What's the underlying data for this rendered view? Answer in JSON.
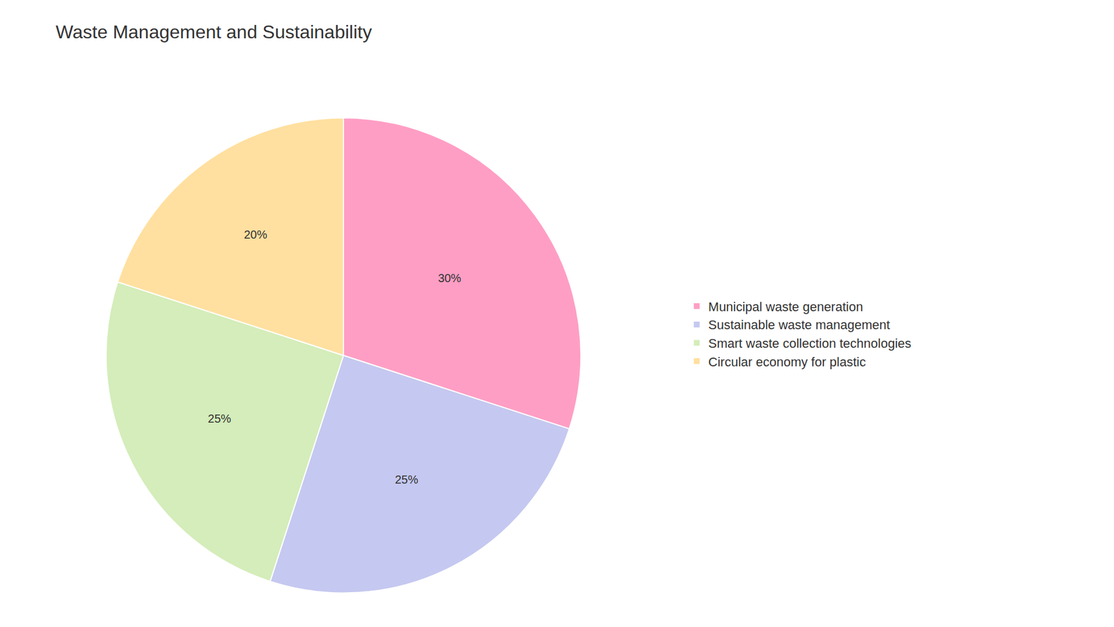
{
  "chart_data": {
    "type": "pie",
    "title": "Waste Management and Sustainability",
    "categories": [
      "Municipal waste generation",
      "Sustainable waste management",
      "Smart waste collection technologies",
      "Circular economy for plastic"
    ],
    "values": [
      30,
      25,
      25,
      20
    ],
    "value_labels": [
      "30%",
      "25%",
      "25%",
      "20%"
    ],
    "colors": [
      "#FF9EC4",
      "#C5C8F0",
      "#D4EDBA",
      "#FFE0A0"
    ],
    "data_labels": true,
    "legend": "right"
  }
}
